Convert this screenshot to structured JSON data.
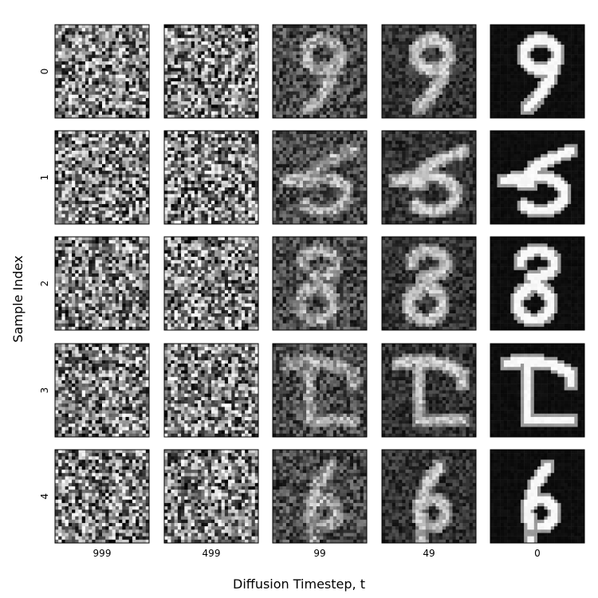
{
  "chart_data": {
    "type": "heatmap",
    "title": "",
    "xlabel": "Diffusion Timestep, t",
    "ylabel": "Sample Index",
    "x": [
      "999",
      "499",
      "99",
      "49",
      "0"
    ],
    "y": [
      "0",
      "1",
      "2",
      "3",
      "4"
    ],
    "colormap": "grayscale",
    "grid": false,
    "image_resolution": 28,
    "noise_level_by_timestep": [
      1.0,
      0.92,
      0.55,
      0.35,
      0.02
    ],
    "samples": [
      {
        "index": "0",
        "final_digit": "9"
      },
      {
        "index": "1",
        "final_digit": "5"
      },
      {
        "index": "2",
        "final_digit": "8"
      },
      {
        "index": "3",
        "final_digit": "T"
      },
      {
        "index": "4",
        "final_digit": "6"
      }
    ]
  },
  "colors": {
    "background": "#ffffff",
    "frame": "#000000"
  }
}
